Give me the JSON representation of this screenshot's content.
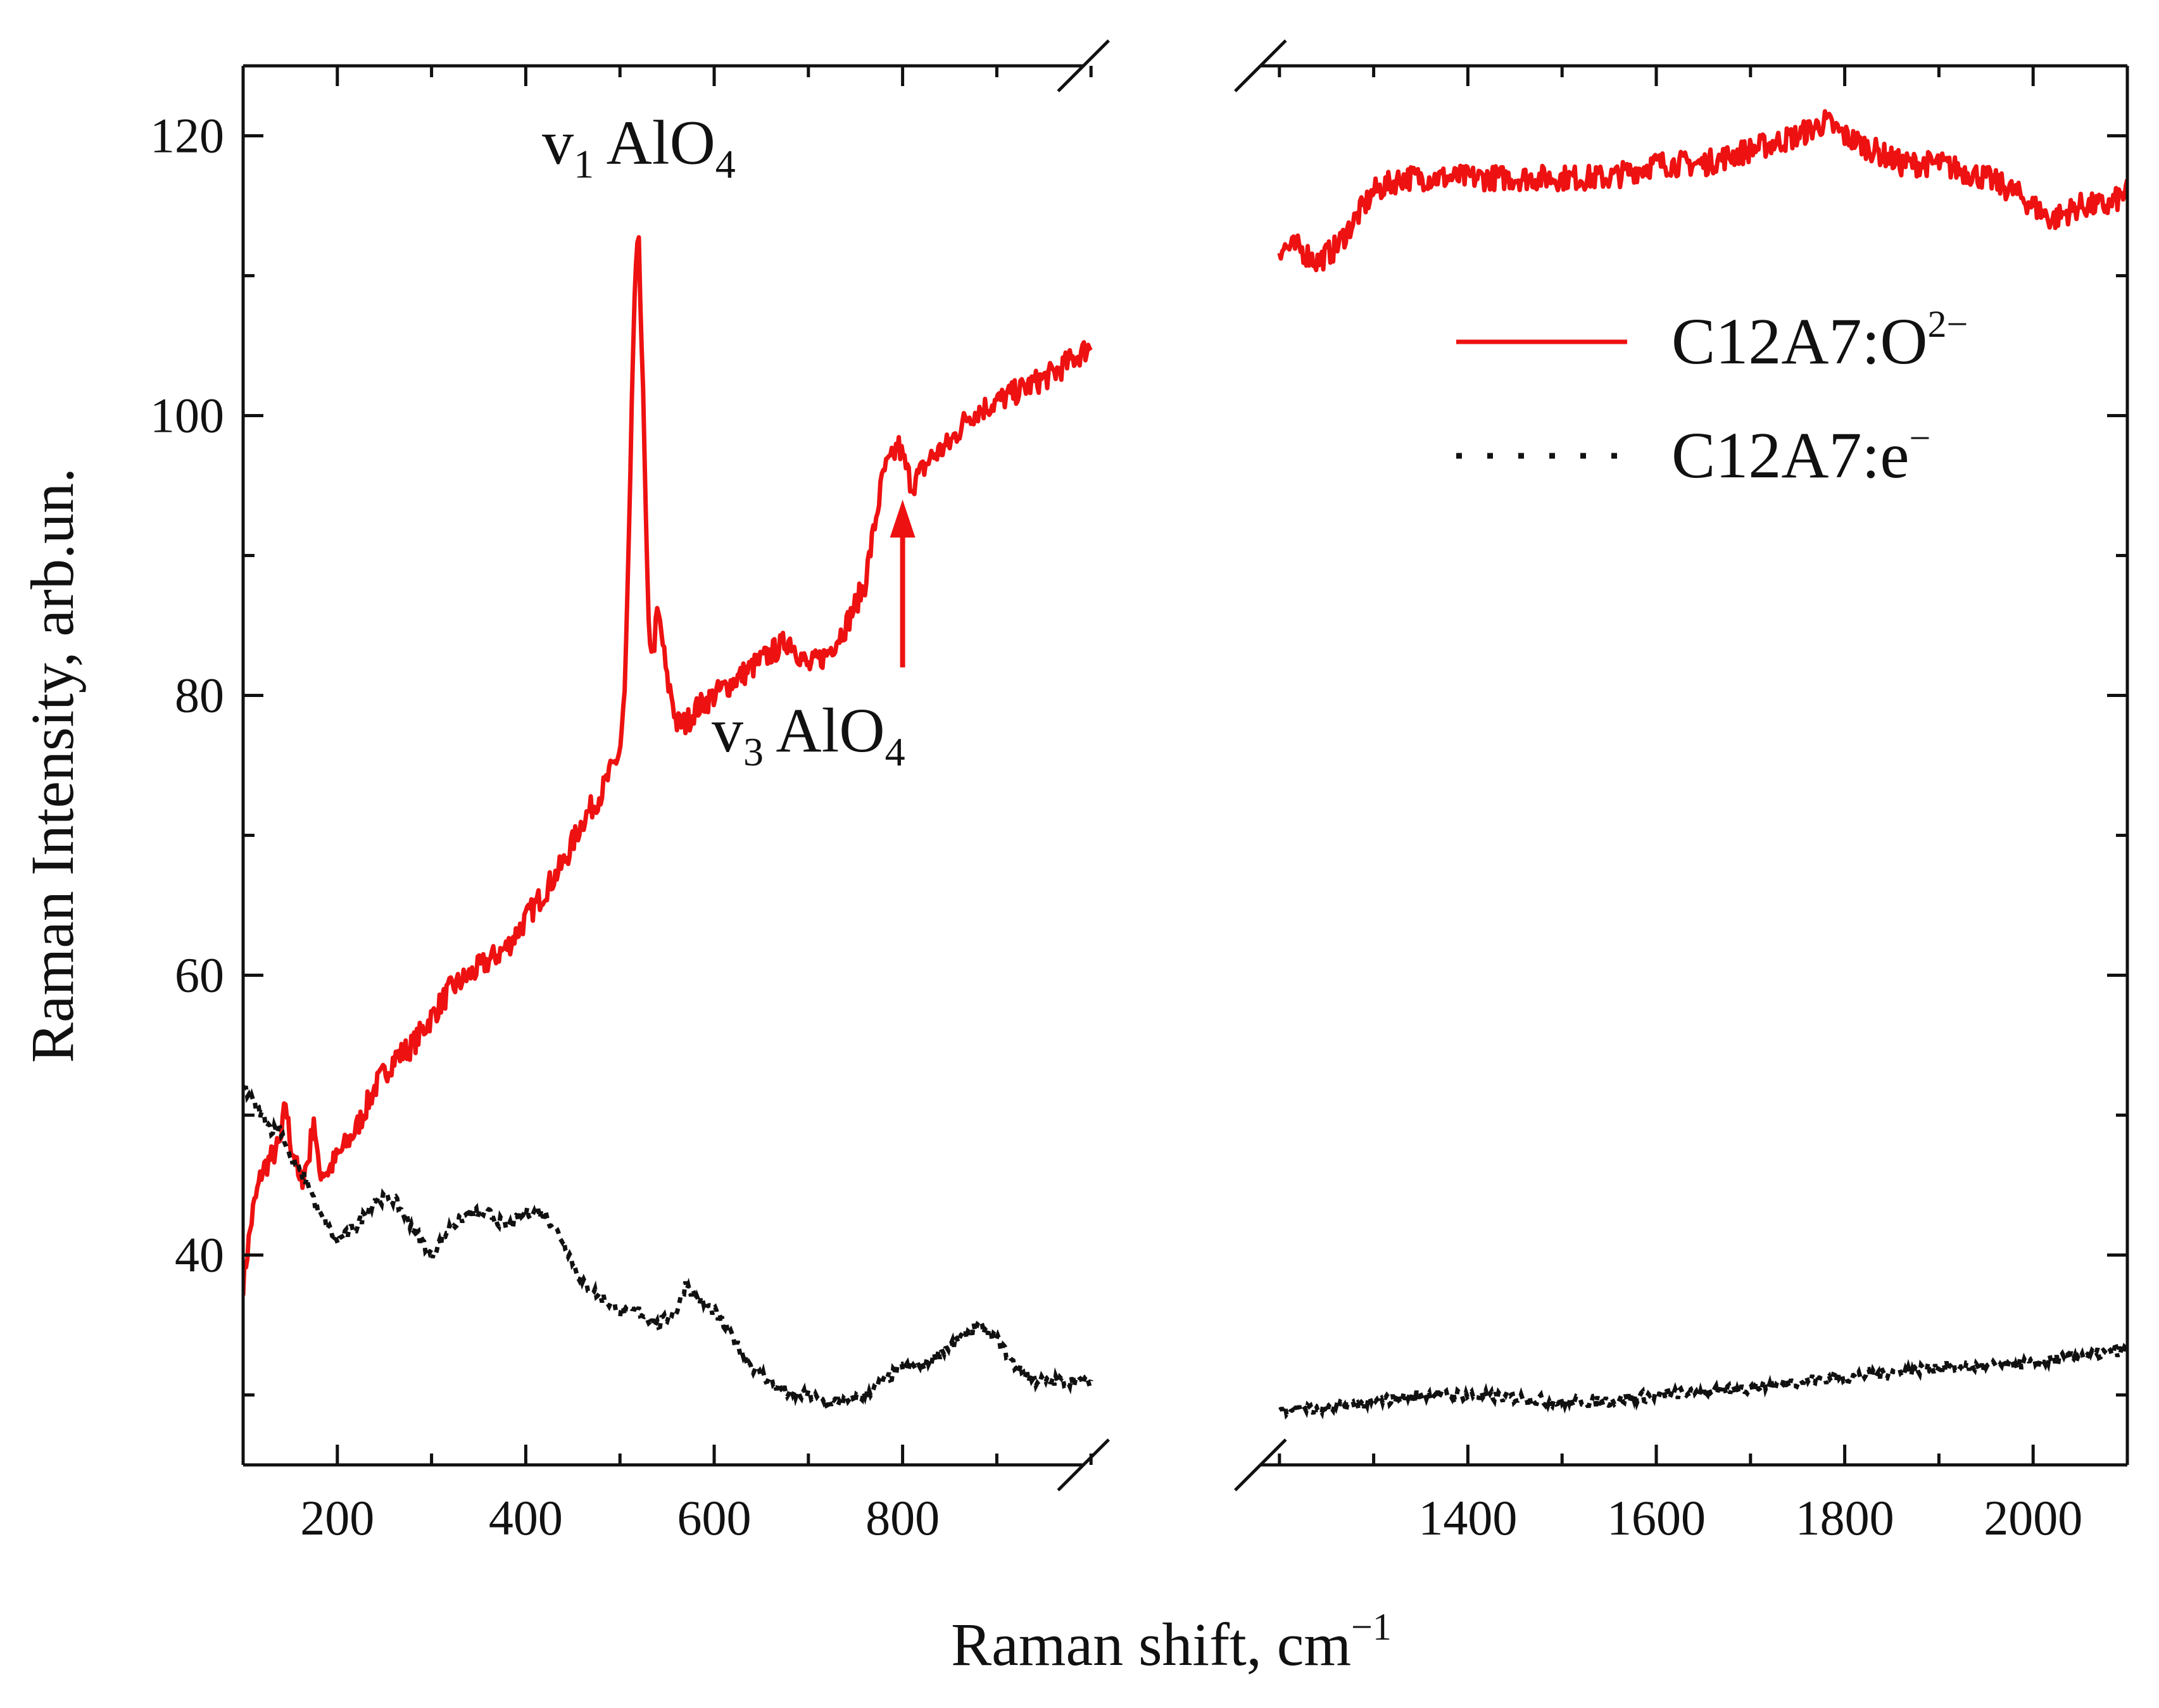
{
  "chart_data": {
    "type": "line",
    "title": "",
    "xlabel": "Raman shift, cm",
    "xlabel_sup": "−1",
    "ylabel": "Raman Intensity, arb.un.",
    "axis_break": {
      "from": 1000,
      "to": 1200
    },
    "xlim_left": [
      100,
      1000
    ],
    "xlim_right": [
      1200,
      2100
    ],
    "ylim": [
      25,
      125
    ],
    "x_ticks": [
      200,
      400,
      600,
      800,
      1400,
      1600,
      1800,
      2000
    ],
    "x_tick_labels": [
      "200",
      "400",
      "600",
      "800",
      "1400",
      "1600",
      "1800",
      "2000"
    ],
    "y_ticks": [
      40,
      60,
      80,
      100,
      120
    ],
    "y_tick_labels": [
      "40",
      "60",
      "80",
      "100",
      "120"
    ],
    "legend": {
      "position": "top-right",
      "entries": [
        {
          "base": "C12A7:O",
          "sup": "2−",
          "style": "solid",
          "color": "#ee1111"
        },
        {
          "base": "C12A7:e",
          "sup": "−",
          "style": "dotted",
          "color": "#111111"
        }
      ]
    },
    "annotations": [
      {
        "id": "v1",
        "symbol": "v",
        "sub": "1",
        "text": " AlO",
        "text_sub": "4",
        "x": 520,
        "y": 118
      },
      {
        "id": "v3",
        "symbol": "v",
        "sub": "3",
        "text": " AlO",
        "text_sub": "4",
        "x": 700,
        "y": 76
      }
    ],
    "arrow": {
      "x": 800,
      "y_from": 82,
      "y_to": 94
    },
    "series": [
      {
        "name": "C12A7:O2−",
        "color": "#ee1111",
        "style": "solid",
        "noise": 0.9,
        "segments": [
          {
            "x": [
              100,
              110,
              120,
              130,
              140,
              145,
              150,
              155,
              160,
              165,
              170,
              175,
              180,
              190,
              200,
              220,
              240,
              260,
              280,
              300,
              320,
              340,
              360,
              380,
              400,
              420,
              440,
              460,
              480,
              500,
              505,
              510,
              515,
              520,
              525,
              530,
              535,
              540,
              545,
              550,
              555,
              560,
              570,
              580,
              600,
              620,
              640,
              660,
              680,
              690,
              700,
              720,
              740,
              760,
              770,
              780,
              790,
              795,
              800,
              810,
              830,
              850,
              870,
              900,
              930,
              960,
              980,
              1000
            ],
            "y": [
              38,
              43,
              46,
              47,
              48,
              51,
              48,
              47,
              45,
              46,
              47,
              50,
              46,
              46,
              47,
              49,
              52,
              54,
              55,
              57,
              59,
              60,
              61,
              62,
              64,
              66,
              68,
              71,
              73,
              76,
              80,
              92,
              108,
              113,
              100,
              85,
              83,
              86,
              84,
              81,
              80,
              78,
              78,
              79,
              80,
              81,
              82,
              83,
              84,
              83,
              82,
              83,
              85,
              88,
              92,
              96,
              97,
              98,
              97,
              95,
              97,
              98,
              100,
              101,
              102,
              103,
              104,
              105
            ]
          },
          {
            "x": [
              1200,
              1220,
              1240,
              1260,
              1280,
              1300,
              1330,
              1360,
              1400,
              1450,
              1500,
              1550,
              1600,
              1650,
              1700,
              1750,
              1780,
              1800,
              1830,
              1860,
              1900,
              1950,
              1980,
              2000,
              2020,
              2050,
              2080,
              2100
            ],
            "y": [
              112,
              112,
              111,
              112,
              114,
              116,
              117,
              117,
              117,
              117,
              117,
              117,
              118,
              118,
              119,
              120,
              121,
              120,
              119,
              118,
              118,
              117,
              116,
              115,
              114,
              115,
              115,
              116
            ]
          }
        ]
      },
      {
        "name": "C12A7:e−",
        "color": "#111111",
        "style": "dotted",
        "noise": 0.4,
        "segments": [
          {
            "x": [
              100,
              110,
              120,
              130,
              140,
              150,
              160,
              170,
              180,
              190,
              200,
              220,
              240,
              260,
              280,
              300,
              320,
              340,
              360,
              380,
              400,
              420,
              440,
              460,
              480,
              500,
              520,
              540,
              560,
              570,
              580,
              600,
              620,
              640,
              660,
              680,
              700,
              720,
              740,
              760,
              780,
              800,
              820,
              840,
              860,
              880,
              900,
              920,
              940,
              960,
              1000
            ],
            "y": [
              52,
              51,
              50,
              49,
              49,
              47,
              46,
              45,
              43,
              42,
              41,
              42,
              44,
              44,
              42,
              40,
              42,
              43,
              43,
              42,
              43,
              43,
              41,
              38,
              37,
              36,
              36,
              35,
              36,
              38,
              37,
              36,
              34,
              32,
              31,
              30,
              30,
              29.5,
              29.5,
              30,
              31,
              32,
              32,
              33,
              34,
              35,
              34,
              32,
              31,
              31,
              31
            ]
          },
          {
            "x": [
              1200,
              1250,
              1300,
              1350,
              1400,
              1450,
              1500,
              1550,
              1600,
              1650,
              1700,
              1750,
              1800,
              1850,
              1900,
              1950,
              2000,
              2050,
              2100
            ],
            "y": [
              29,
              29,
              29.5,
              30,
              30,
              29.8,
              29.5,
              29.6,
              30,
              30.2,
              30.5,
              31,
              31.3,
              31.6,
              32,
              32,
              32.3,
              32.8,
              33.2
            ]
          }
        ]
      }
    ]
  }
}
